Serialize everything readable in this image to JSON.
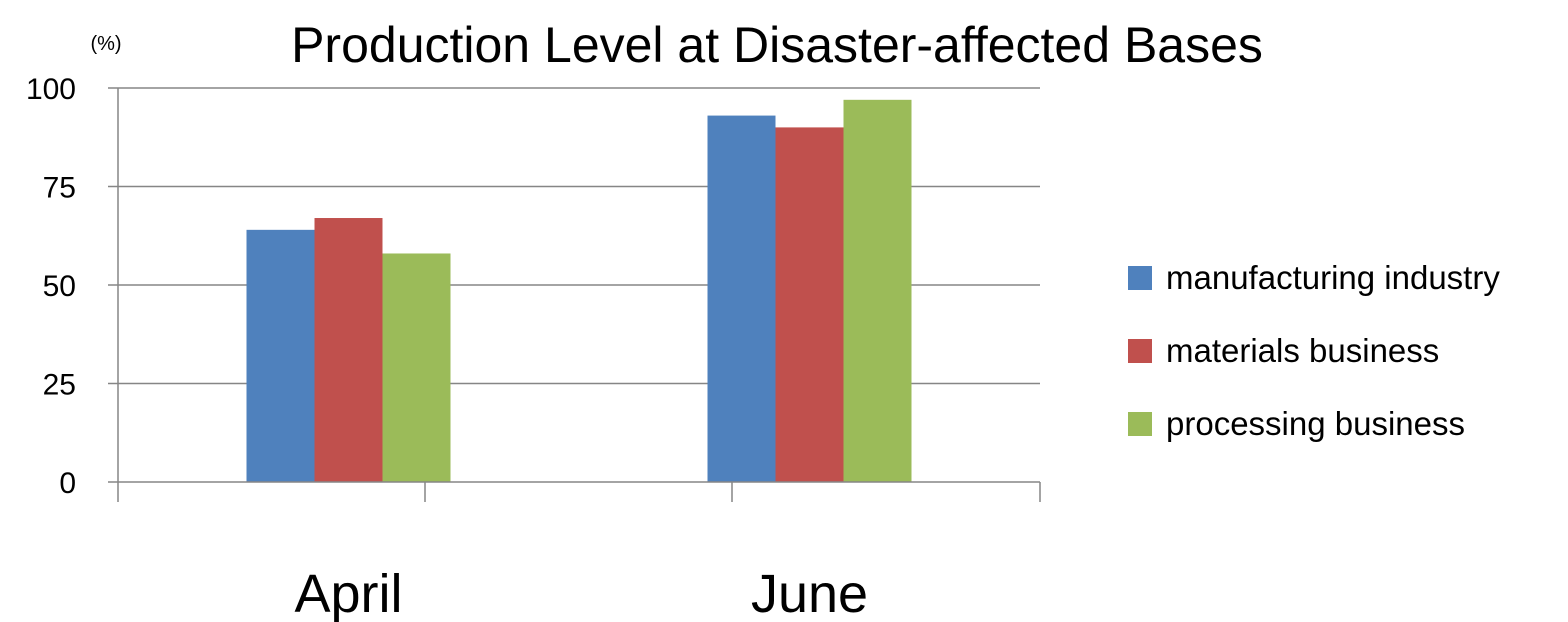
{
  "chart_data": {
    "type": "bar",
    "title": "Production Level at Disaster-affected Bases",
    "unit_label": "(%)",
    "xlabel": "",
    "ylabel": "",
    "ylim": [
      0,
      100
    ],
    "yticks": [
      0,
      25,
      50,
      75,
      100
    ],
    "grid": true,
    "legend_position": "right",
    "categories": [
      "April",
      "June"
    ],
    "series": [
      {
        "name": "manufacturing industry",
        "color": "#4F81BD",
        "values": [
          64,
          93
        ]
      },
      {
        "name": "materials business",
        "color": "#C0504D",
        "values": [
          67,
          90
        ]
      },
      {
        "name": "processing business",
        "color": "#9BBB59",
        "values": [
          58,
          97
        ]
      }
    ]
  }
}
